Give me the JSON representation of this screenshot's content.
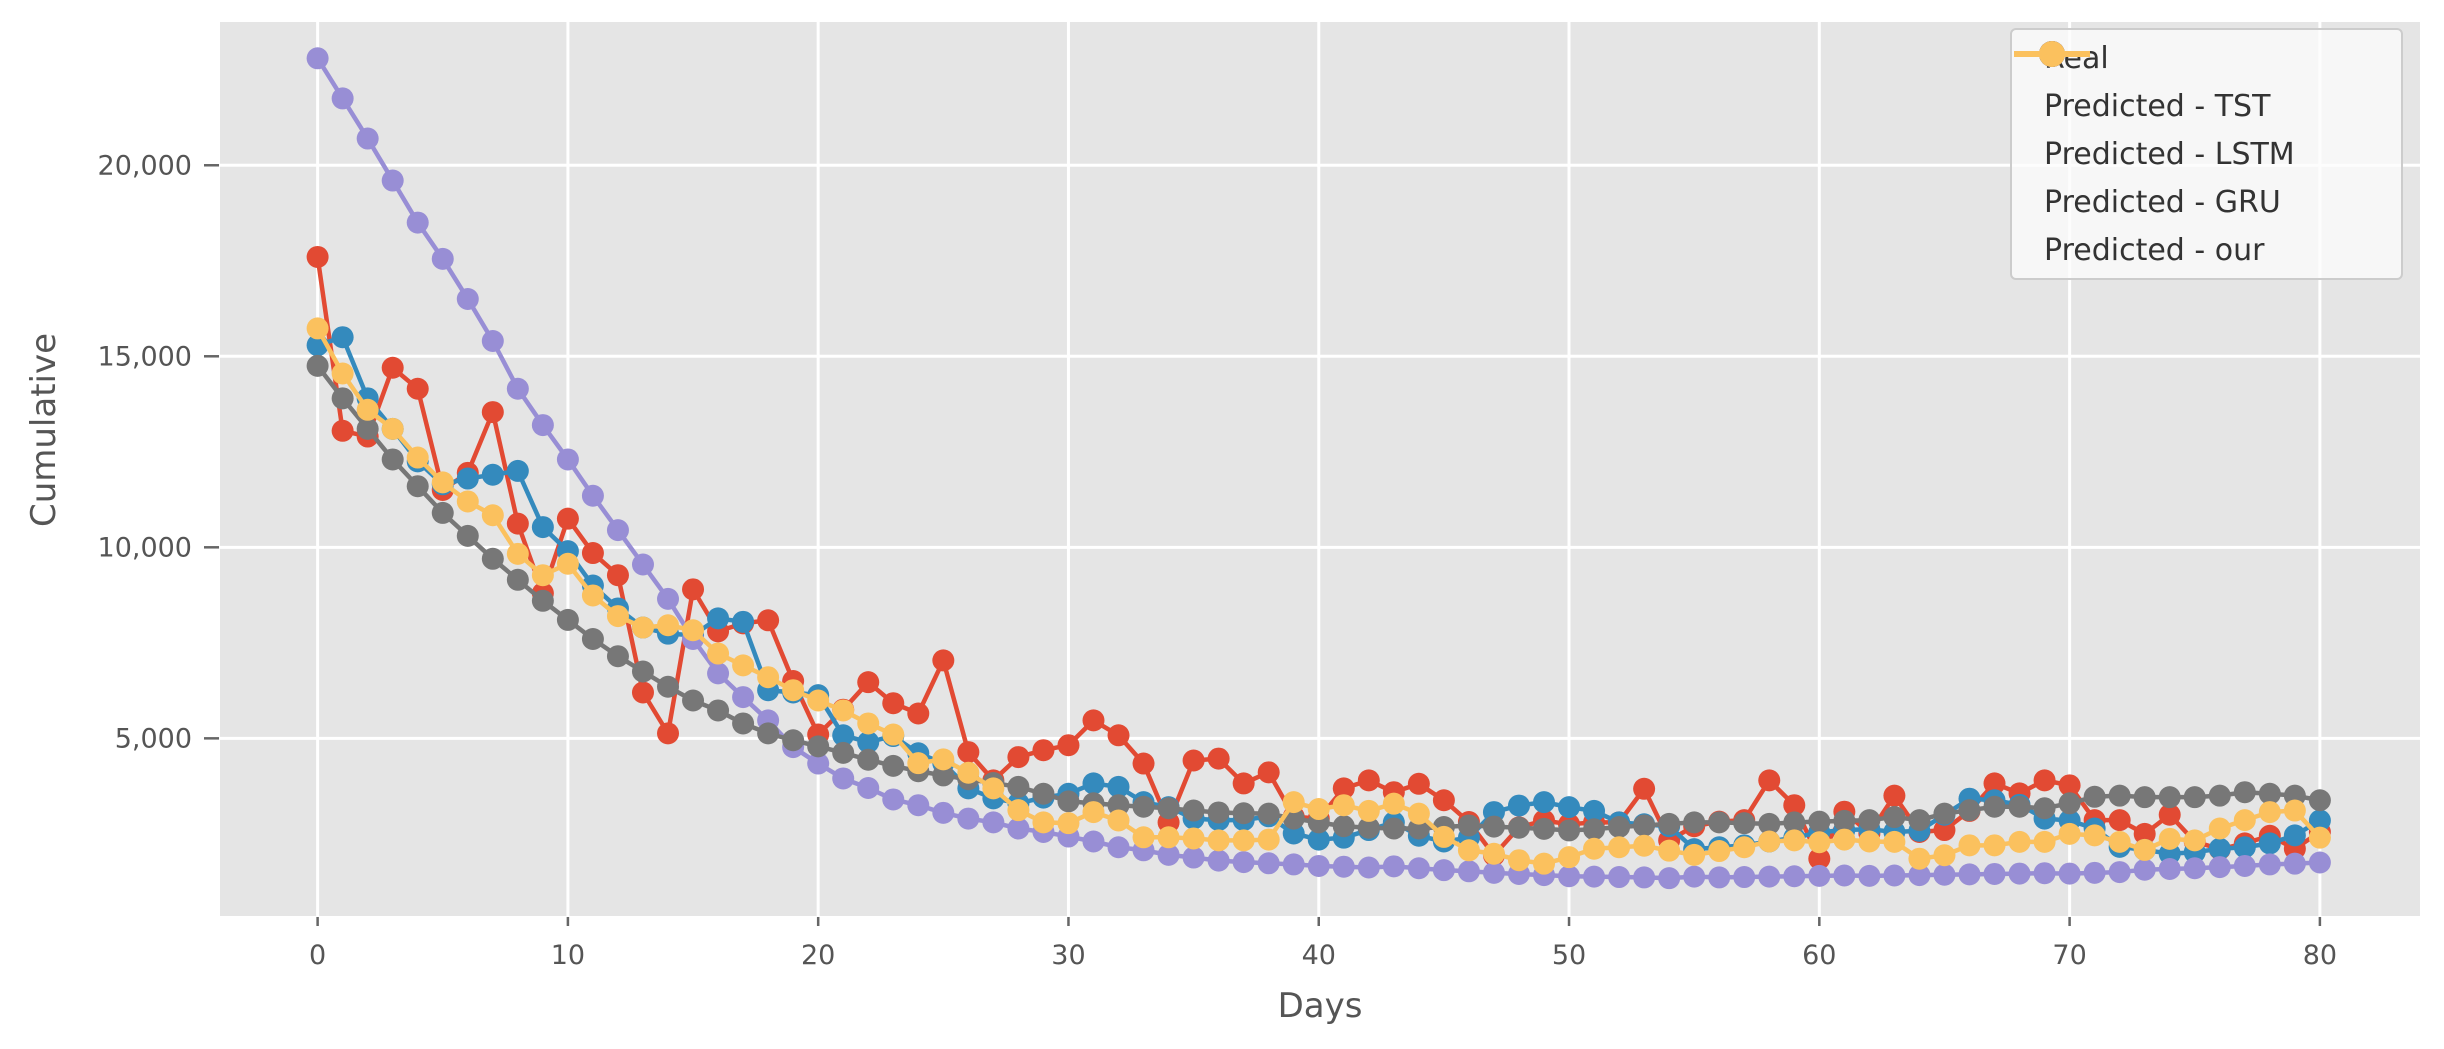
{
  "figure": {
    "background": "#ffffff",
    "plot_background": "#e5e5e5",
    "grid_color": "#ffffff",
    "tick_color": "#666666",
    "tick_label_color": "#555555",
    "axis_label_color": "#555555",
    "legend_border_color": "#cccccc",
    "legend_text_color": "#333333"
  },
  "chart_data": {
    "type": "line",
    "title": "",
    "xlabel": "Days",
    "ylabel": "Cumulative",
    "grid": true,
    "legend_position": "upper right",
    "xlim": [
      -3.9,
      84.0
    ],
    "ylim": [
      350,
      23750
    ],
    "x_ticks": [
      0,
      10,
      20,
      30,
      40,
      50,
      60,
      70,
      80
    ],
    "x_tick_labels": [
      "0",
      "10",
      "20",
      "30",
      "40",
      "50",
      "60",
      "70",
      "80"
    ],
    "y_ticks": [
      5000,
      10000,
      15000,
      20000
    ],
    "y_tick_labels": [
      "5,000",
      "10,000",
      "15,000",
      "20,000"
    ],
    "x": [
      0,
      1,
      2,
      3,
      4,
      5,
      6,
      7,
      8,
      9,
      10,
      11,
      12,
      13,
      14,
      15,
      16,
      17,
      18,
      19,
      20,
      21,
      22,
      23,
      24,
      25,
      26,
      27,
      28,
      29,
      30,
      31,
      32,
      33,
      34,
      35,
      36,
      37,
      38,
      39,
      40,
      41,
      42,
      43,
      44,
      45,
      46,
      47,
      48,
      49,
      50,
      51,
      52,
      53,
      54,
      55,
      56,
      57,
      58,
      59,
      60,
      61,
      62,
      63,
      64,
      65,
      66,
      67,
      68,
      69,
      70,
      71,
      72,
      73,
      74,
      75,
      76,
      77,
      78,
      79,
      80
    ],
    "marker": "circle",
    "marker_size": 11,
    "line_width": 4.5,
    "series": [
      {
        "name": "Real",
        "color": "#E24A33",
        "values": [
          17600,
          13050,
          12900,
          14700,
          14150,
          11500,
          11950,
          13540,
          10620,
          8800,
          10750,
          9850,
          9270,
          6200,
          5130,
          8900,
          7800,
          8010,
          8090,
          6500,
          5100,
          5750,
          6470,
          5920,
          5650,
          7040,
          4640,
          3900,
          4510,
          4690,
          4820,
          5470,
          5080,
          4340,
          2800,
          4420,
          4470,
          3820,
          4110,
          2950,
          2900,
          3690,
          3900,
          3590,
          3810,
          3380,
          2810,
          1940,
          2670,
          2850,
          2750,
          2800,
          2800,
          3680,
          2330,
          2700,
          2820,
          2860,
          3900,
          3250,
          1850,
          3080,
          2510,
          3500,
          2550,
          2600,
          3100,
          3820,
          3560,
          3900,
          3770,
          2860,
          2860,
          2500,
          3000,
          2300,
          2100,
          2250,
          2450,
          2110,
          2550
        ]
      },
      {
        "name": "Predicted - TST",
        "color": "#348ABD",
        "values": [
          15290,
          15500,
          13900,
          13100,
          12250,
          11650,
          11800,
          11900,
          12000,
          10530,
          9900,
          9000,
          8400,
          7900,
          7740,
          7700,
          8140,
          8050,
          6260,
          6200,
          6130,
          5080,
          4900,
          5060,
          4610,
          4350,
          3690,
          3430,
          3300,
          3450,
          3550,
          3820,
          3730,
          3330,
          3200,
          2900,
          2860,
          2860,
          2960,
          2510,
          2350,
          2400,
          2600,
          2800,
          2450,
          2300,
          2400,
          3070,
          3240,
          3330,
          3200,
          3100,
          2800,
          2750,
          2700,
          2100,
          2150,
          2200,
          2300,
          2400,
          2540,
          2600,
          2620,
          2550,
          2580,
          3000,
          3420,
          3380,
          3260,
          2900,
          2850,
          2640,
          2160,
          2080,
          1980,
          2020,
          2110,
          2150,
          2250,
          2460,
          2850
        ]
      },
      {
        "name": "Predicted - LSTM",
        "color": "#988ED5",
        "values": [
          22800,
          21750,
          20700,
          19600,
          18500,
          17550,
          16500,
          15400,
          14150,
          13200,
          12300,
          11350,
          10450,
          9550,
          8650,
          7600,
          6700,
          6080,
          5470,
          4770,
          4340,
          3950,
          3700,
          3400,
          3250,
          3050,
          2900,
          2800,
          2640,
          2550,
          2430,
          2300,
          2150,
          2070,
          1950,
          1880,
          1800,
          1760,
          1730,
          1700,
          1660,
          1640,
          1620,
          1650,
          1600,
          1550,
          1520,
          1480,
          1450,
          1420,
          1390,
          1380,
          1370,
          1360,
          1340,
          1380,
          1360,
          1370,
          1380,
          1390,
          1400,
          1410,
          1400,
          1410,
          1420,
          1430,
          1440,
          1450,
          1460,
          1470,
          1460,
          1480,
          1500,
          1560,
          1580,
          1600,
          1630,
          1660,
          1700,
          1720,
          1750
        ]
      },
      {
        "name": "Predicted - GRU",
        "color": "#777777",
        "values": [
          14750,
          13900,
          13100,
          12300,
          11600,
          10900,
          10300,
          9700,
          9150,
          8600,
          8100,
          7600,
          7150,
          6750,
          6350,
          5990,
          5730,
          5390,
          5130,
          4950,
          4790,
          4620,
          4440,
          4280,
          4140,
          4030,
          3930,
          3830,
          3730,
          3550,
          3350,
          3300,
          3250,
          3210,
          3170,
          3110,
          3060,
          3040,
          3030,
          2900,
          2800,
          2700,
          2660,
          2640,
          2640,
          2680,
          2720,
          2690,
          2660,
          2630,
          2590,
          2620,
          2680,
          2720,
          2760,
          2800,
          2800,
          2780,
          2760,
          2800,
          2820,
          2840,
          2860,
          2940,
          2860,
          3030,
          3120,
          3210,
          3210,
          3170,
          3300,
          3470,
          3500,
          3460,
          3460,
          3460,
          3500,
          3590,
          3550,
          3500,
          3380
        ]
      },
      {
        "name": "Predicted - our",
        "color": "#FBC15E",
        "values": [
          15730,
          14550,
          13600,
          13100,
          12350,
          11700,
          11200,
          10840,
          9830,
          9270,
          9570,
          8740,
          8200,
          7900,
          7960,
          7830,
          7220,
          6910,
          6600,
          6260,
          5990,
          5730,
          5390,
          5100,
          4350,
          4450,
          4100,
          3690,
          3120,
          2800,
          2780,
          3070,
          2850,
          2410,
          2410,
          2380,
          2330,
          2330,
          2350,
          3330,
          3150,
          3250,
          3100,
          3290,
          3030,
          2420,
          2070,
          1980,
          1810,
          1720,
          1890,
          2110,
          2150,
          2190,
          2060,
          1950,
          2050,
          2150,
          2300,
          2330,
          2280,
          2350,
          2300,
          2290,
          1850,
          1940,
          2200,
          2200,
          2290,
          2290,
          2500,
          2460,
          2290,
          2080,
          2370,
          2330,
          2640,
          2860,
          3070,
          3110,
          2400
        ]
      }
    ]
  }
}
